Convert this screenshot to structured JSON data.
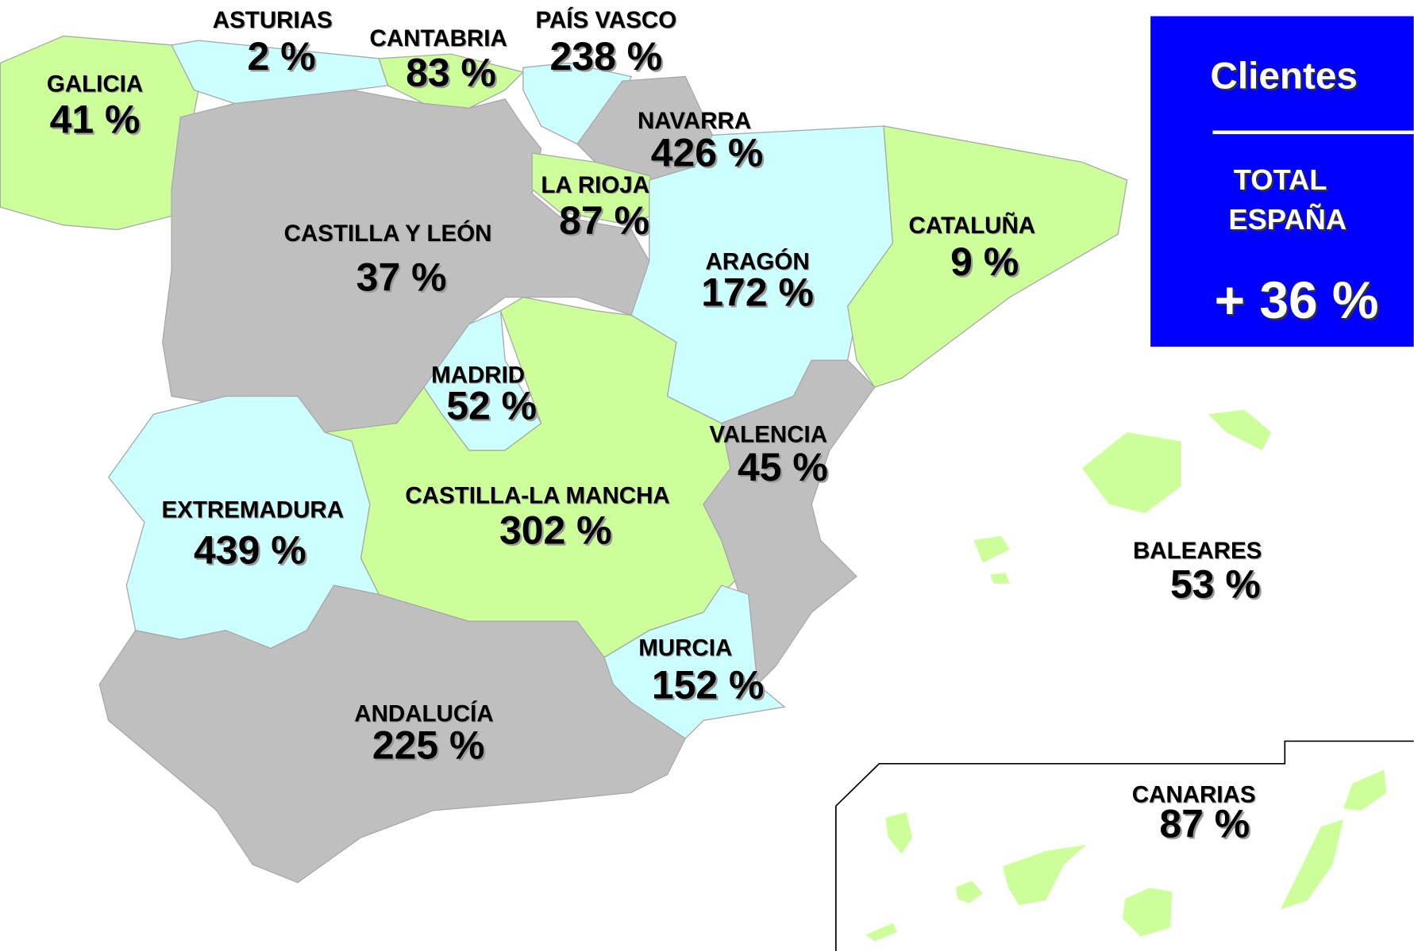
{
  "legend": {
    "title": "Clientes",
    "total_lines": [
      "TOTAL",
      "ESPAÑA"
    ],
    "total_value": "+ 36 %"
  },
  "regions": [
    {
      "name": "ASTURIAS",
      "value": "2 %"
    },
    {
      "name": "CANTABRIA",
      "value": "83 %"
    },
    {
      "name": "PAÍS VASCO",
      "value": "238 %"
    },
    {
      "name": "GALICIA",
      "value": "41 %"
    },
    {
      "name": "NAVARRA",
      "value": "426 %"
    },
    {
      "name": "LA RIOJA",
      "value": "87 %"
    },
    {
      "name": "CASTILLA Y LEÓN",
      "value": "37 %"
    },
    {
      "name": "ARAGÓN",
      "value": "172 %"
    },
    {
      "name": "CATALUÑA",
      "value": "9 %"
    },
    {
      "name": "MADRID",
      "value": "52 %"
    },
    {
      "name": "VALENCIA",
      "value": "45 %"
    },
    {
      "name": "CASTILLA-LA MANCHA",
      "value": "302 %"
    },
    {
      "name": "EXTREMADURA",
      "value": "439 %"
    },
    {
      "name": "BALEARES",
      "value": "53 %"
    },
    {
      "name": "MURCIA",
      "value": "152 %"
    },
    {
      "name": "ANDALUCÍA",
      "value": "225 %"
    },
    {
      "name": "CANARIAS",
      "value": "87 %"
    }
  ]
}
